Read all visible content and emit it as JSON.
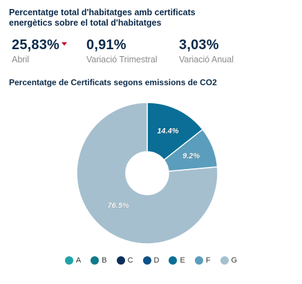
{
  "header": {
    "title": "Percentatge total d'habitatges amb certificats energètics sobre el total d'habitatges"
  },
  "kpis": [
    {
      "value": "25,83%",
      "label": "Abril",
      "trend": "down"
    },
    {
      "value": "0,91%",
      "label": "Variació Trimestral"
    },
    {
      "value": "3,03%",
      "label": "Variació Anual"
    }
  ],
  "colors": {
    "A": "#1fa3a8",
    "B": "#107a8c",
    "C": "#0b2f5a",
    "D": "#0e5186",
    "E": "#0a6e96",
    "F": "#5b9dbc",
    "G": "#a5bfcf",
    "trend_down": "#c8102e",
    "title_text": "#0b2a4a"
  },
  "chart_data": {
    "type": "pie",
    "title": "Percentatge de Certificats segons emissions de CO2",
    "donut": true,
    "categories": [
      "A",
      "B",
      "C",
      "D",
      "E",
      "F",
      "G"
    ],
    "values": [
      0,
      0,
      0,
      0,
      14.4,
      9.2,
      76.5
    ],
    "data_labels": [
      "",
      "",
      "",
      "",
      "14.4%",
      "9.2%",
      "76.5%"
    ],
    "legend": "bottom"
  }
}
